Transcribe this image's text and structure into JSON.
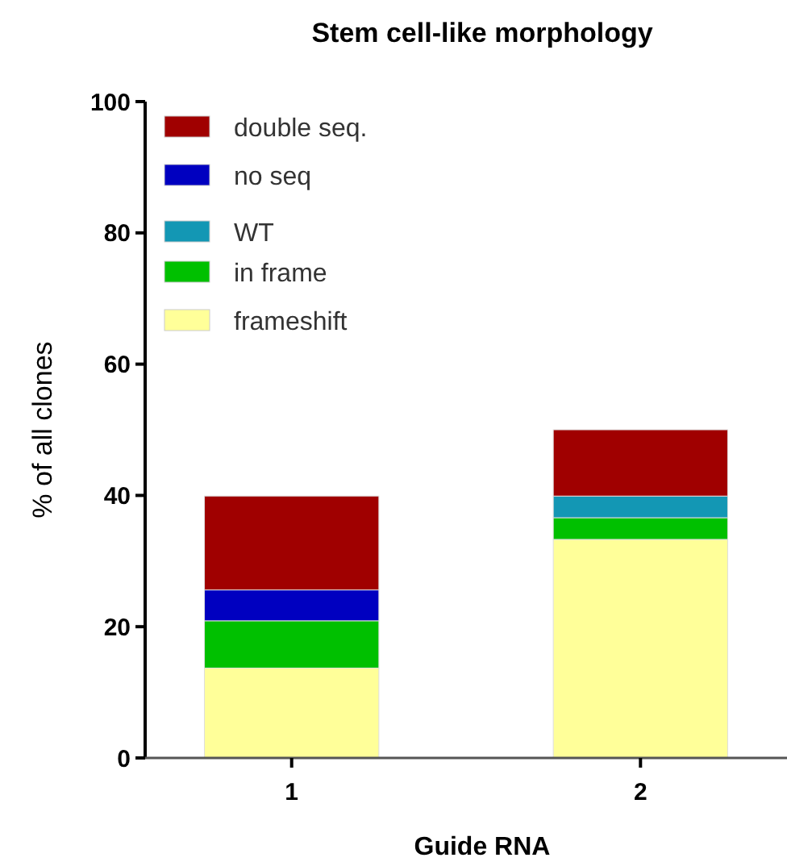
{
  "chart_data": {
    "type": "bar",
    "title": "Stem cell-like morphology",
    "xlabel": "Guide RNA",
    "ylabel": "% of all clones",
    "categories": [
      "1",
      "2"
    ],
    "stacked": true,
    "legend": "top left",
    "ylim": [
      0,
      100
    ],
    "yticks": [
      0,
      20,
      40,
      60,
      80,
      100
    ],
    "grid": false,
    "series": [
      {
        "name": "frameshift",
        "color": "#ffff99",
        "values": [
          13.7,
          33.3
        ]
      },
      {
        "name": "in frame",
        "color": "#00c000",
        "values": [
          7.2,
          3.3
        ]
      },
      {
        "name": "WT",
        "color": "#1397b4",
        "values": [
          0,
          3.3
        ]
      },
      {
        "name": "no seq",
        "color": "#0000c0",
        "values": [
          4.7,
          0
        ]
      },
      {
        "name": "double seq.",
        "color": "#a00000",
        "values": [
          14.3,
          10.1
        ]
      }
    ]
  }
}
